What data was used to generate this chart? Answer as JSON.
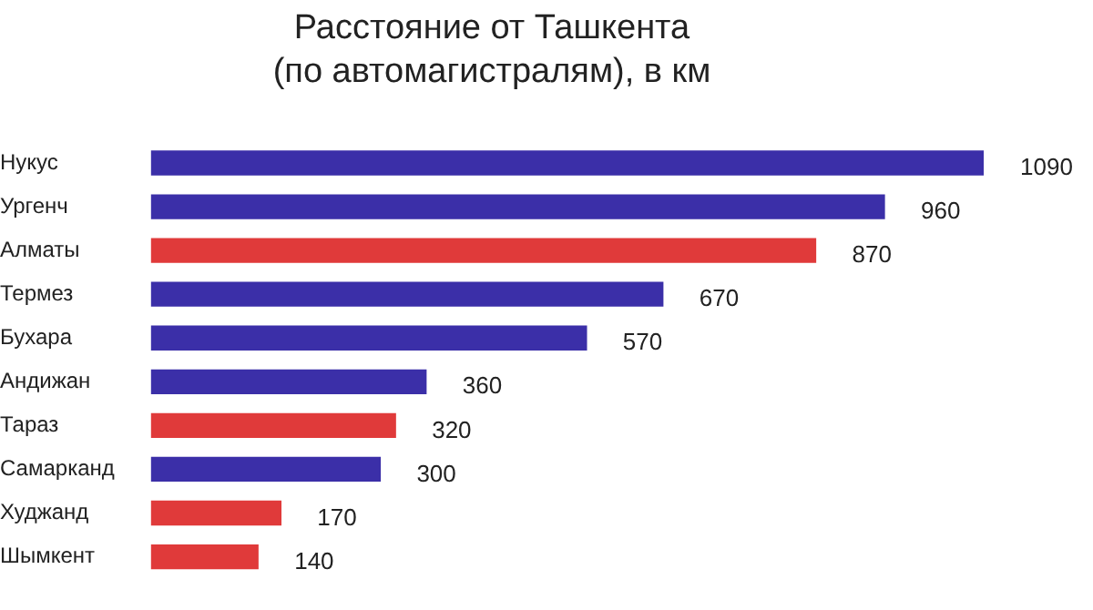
{
  "chart_data": {
    "type": "bar",
    "orientation": "horizontal",
    "title": "Расстояние от Ташкента\n(по автомагистралям), в км",
    "categories": [
      "Нукус",
      "Ургенч",
      "Алматы",
      "Термез",
      "Бухара",
      "Андижан",
      "Тараз",
      "Самарканд",
      "Худжанд",
      "Шымкент"
    ],
    "values": [
      1090,
      960,
      870,
      670,
      570,
      360,
      320,
      300,
      170,
      140
    ],
    "colors": [
      "#3b2fa8",
      "#3b2fa8",
      "#e03a3a",
      "#3b2fa8",
      "#3b2fa8",
      "#3b2fa8",
      "#e03a3a",
      "#3b2fa8",
      "#e03a3a",
      "#e03a3a"
    ],
    "xlim": [
      0,
      1090
    ],
    "data_labels": true,
    "tick_labels": "y",
    "legend": false
  }
}
